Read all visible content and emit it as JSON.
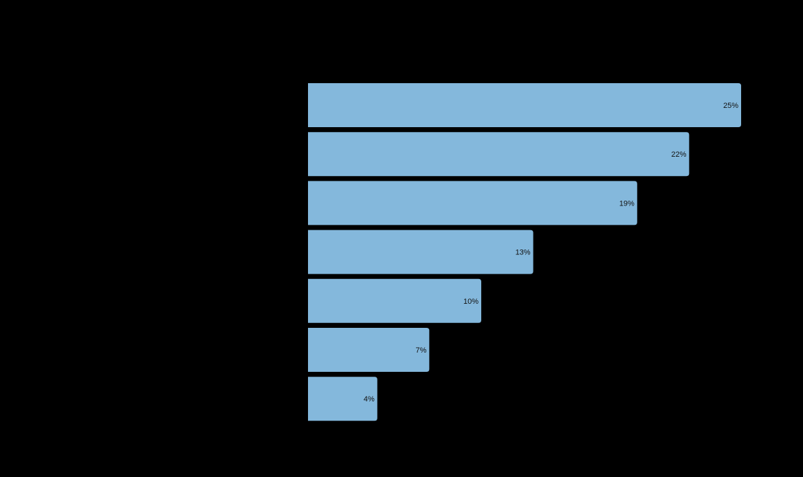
{
  "chart_data": {
    "type": "bar",
    "orientation": "horizontal",
    "categories": [
      "",
      "",
      "",
      "",
      "",
      "",
      ""
    ],
    "values": [
      25,
      22,
      19,
      13,
      10,
      7,
      4
    ],
    "value_labels": [
      "25%",
      "22%",
      "19%",
      "13%",
      "10%",
      "7%",
      "4%"
    ],
    "title": "",
    "xlabel": "",
    "ylabel": "",
    "xlim": [
      0,
      25
    ],
    "grid": false,
    "legend": "none",
    "colors": {
      "background": "#000000",
      "bar": "#84b8dc",
      "label": "#111111"
    }
  }
}
